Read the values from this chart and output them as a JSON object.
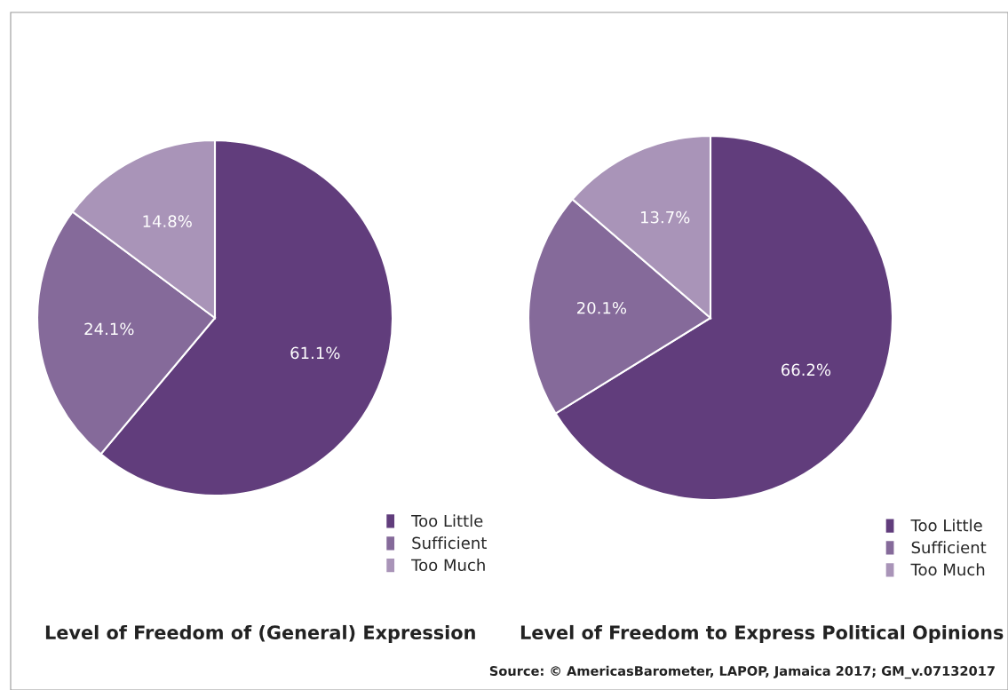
{
  "chart_data": [
    {
      "type": "pie",
      "title": "Level of Freedom of (General) Expression",
      "categories": [
        "Too Little",
        "Sufficient",
        "Too Much"
      ],
      "values": [
        61.1,
        24.1,
        14.8
      ],
      "colors": [
        "#613d7c",
        "#856a9a",
        "#a994b8"
      ],
      "value_labels": [
        "61.1%",
        "24.1%",
        "14.8%"
      ],
      "legend": "bottom right"
    },
    {
      "type": "pie",
      "title": "Level of Freedom to Express Political Opinions",
      "categories": [
        "Too Little",
        "Sufficient",
        "Too Much"
      ],
      "values": [
        66.2,
        20.1,
        13.7
      ],
      "colors": [
        "#613d7c",
        "#856a9a",
        "#a994b8"
      ],
      "value_labels": [
        "66.2%",
        "20.1%",
        "13.7%"
      ],
      "legend": "bottom right",
      "annotations": [
        "Source: © AmericasBarometer, LAPOP, Jamaica 2017; GM_v.07132017"
      ]
    }
  ]
}
